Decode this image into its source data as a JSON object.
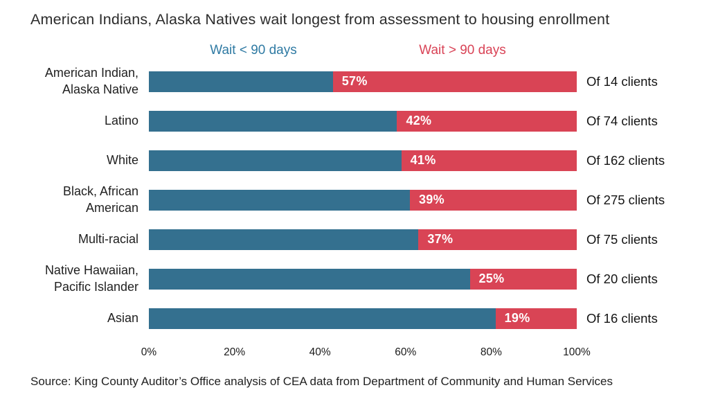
{
  "title": "American Indians, Alaska Natives wait longest from assessment to housing enrollment",
  "legend": {
    "under_90": {
      "label": "Wait < 90 days",
      "color": "#2f7aa3"
    },
    "over_90": {
      "label": "Wait > 90 days",
      "color": "#d94356"
    }
  },
  "colors": {
    "bar_under_90": "#34708f",
    "bar_over_90": "#d94455",
    "pct_text": "#ffffff"
  },
  "chart_data": {
    "type": "bar",
    "orientation": "horizontal-stacked",
    "title": "American Indians, Alaska Natives wait longest from assessment to housing enrollment",
    "series_names": [
      "Wait < 90 days",
      "Wait > 90 days"
    ],
    "x_ticks": [
      "0%",
      "20%",
      "40%",
      "60%",
      "80%",
      "100%"
    ],
    "xlim": [
      0,
      100
    ],
    "grid": false,
    "legend_position": "top",
    "rows": [
      {
        "category": "American Indian,\nAlaska Native",
        "wait_under_90_pct": 43,
        "wait_over_90_pct": 57,
        "pct_label": "57%",
        "clients": "Of 14 clients"
      },
      {
        "category": "Latino",
        "wait_under_90_pct": 58,
        "wait_over_90_pct": 42,
        "pct_label": "42%",
        "clients": "Of 74 clients"
      },
      {
        "category": "White",
        "wait_under_90_pct": 59,
        "wait_over_90_pct": 41,
        "pct_label": "41%",
        "clients": "Of 162 clients"
      },
      {
        "category": "Black, African\nAmerican",
        "wait_under_90_pct": 61,
        "wait_over_90_pct": 39,
        "pct_label": "39%",
        "clients": "Of 275 clients"
      },
      {
        "category": "Multi-racial",
        "wait_under_90_pct": 63,
        "wait_over_90_pct": 37,
        "pct_label": "37%",
        "clients": "Of 75 clients"
      },
      {
        "category": "Native Hawaiian,\nPacific Islander",
        "wait_under_90_pct": 75,
        "wait_over_90_pct": 25,
        "pct_label": "25%",
        "clients": "Of 20 clients"
      },
      {
        "category": "Asian",
        "wait_under_90_pct": 81,
        "wait_over_90_pct": 19,
        "pct_label": "19%",
        "clients": "Of 16 clients"
      }
    ],
    "source": "Source: King County Auditor’s Office analysis of CEA data from Department of Community and Human Services"
  }
}
